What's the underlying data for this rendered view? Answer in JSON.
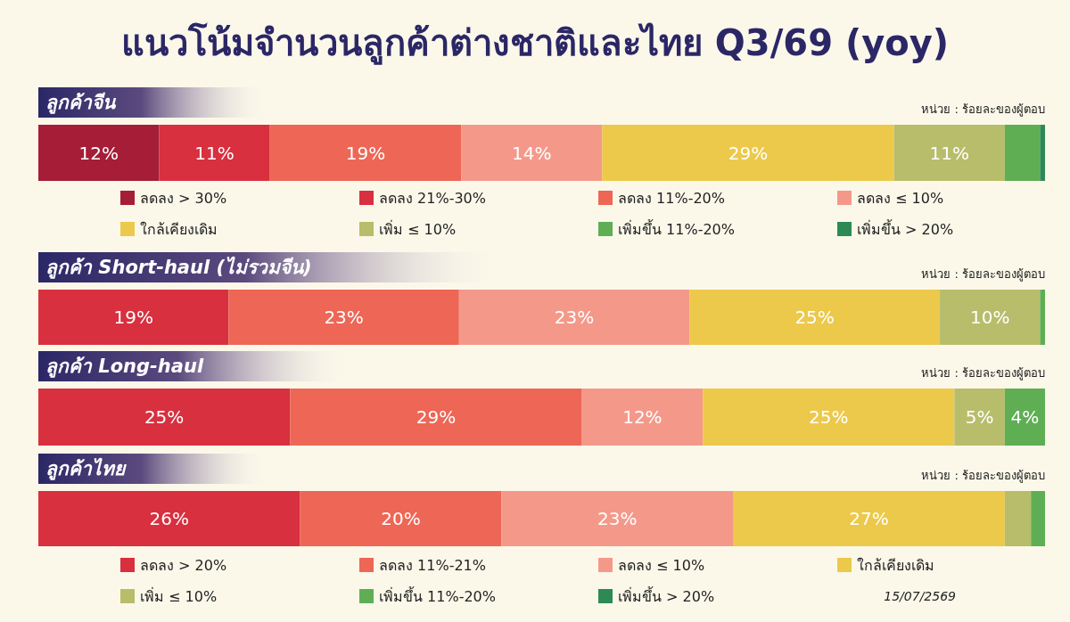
{
  "chart_data": [
    {
      "type": "bar",
      "orientation": "horizontal",
      "stacked": true,
      "title": "แนวโน้มจำนวนลูกค้าต่างชาติและไทย Q3/69 (yoy)",
      "subtitle": "ลูกค้าจีน",
      "annotations": [
        "หน่วย : ร้อยละของผู้ตอบ"
      ],
      "categories": [
        null
      ],
      "xlim": [
        0,
        100
      ],
      "tick_labels": false,
      "legend": "bottom",
      "series": [
        {
          "name": "ลดลง > 30%",
          "color": "#a51d36",
          "values": [
            12
          ],
          "value_labels": [
            "12%"
          ]
        },
        {
          "name": "ลดลง 21%-30%",
          "color": "#d8303f",
          "values": [
            11
          ],
          "value_labels": [
            "11%"
          ]
        },
        {
          "name": "ลดลง 11%-20%",
          "color": "#ee6655",
          "values": [
            19
          ],
          "value_labels": [
            "19%"
          ]
        },
        {
          "name": "ลดลง ≤ 10%",
          "color": "#f4998a",
          "values": [
            14
          ],
          "value_labels": [
            "14%"
          ]
        },
        {
          "name": "ใกล้เคียงเดิม",
          "color": "#ecc94a",
          "values": [
            29
          ],
          "value_labels": [
            "29%"
          ]
        },
        {
          "name": "เพิ่ม ≤ 10%",
          "color": "#b7bd6a",
          "values": [
            11
          ],
          "value_labels": [
            "11%"
          ]
        },
        {
          "name": "เพิ่มขึ้น 11%-20%",
          "color": "#5fae54",
          "values": [
            3.5
          ],
          "value_labels": [
            null
          ]
        },
        {
          "name": "เพิ่มขึ้น > 20%",
          "color": "#2e8a55",
          "values": [
            0.5
          ],
          "value_labels": [
            null
          ]
        }
      ]
    },
    {
      "type": "bar",
      "orientation": "horizontal",
      "stacked": true,
      "subtitle": "ลูกค้า Short-haul (ไม่รวมจีน)",
      "annotations": [
        "หน่วย : ร้อยละของผู้ตอบ"
      ],
      "categories": [
        null
      ],
      "xlim": [
        0,
        100.5
      ],
      "tick_labels": false,
      "legend": false,
      "series": [
        {
          "color": "#d8303f",
          "values": [
            19
          ],
          "value_labels": [
            "19%"
          ]
        },
        {
          "color": "#ee6655",
          "values": [
            23
          ],
          "value_labels": [
            "23%"
          ]
        },
        {
          "color": "#f4998a",
          "values": [
            23
          ],
          "value_labels": [
            "23%"
          ]
        },
        {
          "color": "#ecc94a",
          "values": [
            25
          ],
          "value_labels": [
            "25%"
          ]
        },
        {
          "color": "#b7bd6a",
          "values": [
            10
          ],
          "value_labels": [
            "10%"
          ]
        },
        {
          "color": "#5fae54",
          "values": [
            0.5
          ],
          "value_labels": [
            null
          ]
        }
      ]
    },
    {
      "type": "bar",
      "orientation": "horizontal",
      "stacked": true,
      "subtitle": "ลูกค้า Long-haul",
      "annotations": [
        "หน่วย : ร้อยละของผู้ตอบ"
      ],
      "categories": [
        null
      ],
      "xlim": [
        0,
        100
      ],
      "tick_labels": false,
      "legend": false,
      "series": [
        {
          "color": "#d8303f",
          "values": [
            25
          ],
          "value_labels": [
            "25%"
          ]
        },
        {
          "color": "#ee6655",
          "values": [
            29
          ],
          "value_labels": [
            "29%"
          ]
        },
        {
          "color": "#f4998a",
          "values": [
            12
          ],
          "value_labels": [
            "12%"
          ]
        },
        {
          "color": "#ecc94a",
          "values": [
            25
          ],
          "value_labels": [
            "25%"
          ]
        },
        {
          "color": "#b7bd6a",
          "values": [
            5
          ],
          "value_labels": [
            "5%"
          ]
        },
        {
          "color": "#5fae54",
          "values": [
            4
          ],
          "value_labels": [
            "4%"
          ]
        }
      ]
    },
    {
      "type": "bar",
      "orientation": "horizontal",
      "stacked": true,
      "subtitle": "ลูกค้าไทย",
      "annotations": [
        "หน่วย : ร้อยละของผู้ตอบ",
        "15/07/2569"
      ],
      "categories": [
        null
      ],
      "xlim": [
        0,
        100
      ],
      "tick_labels": false,
      "legend": "bottom",
      "series": [
        {
          "name": "ลดลง > 20%",
          "color": "#d8303f",
          "values": [
            26
          ],
          "value_labels": [
            "26%"
          ]
        },
        {
          "name": "ลดลง 11%-21%",
          "color": "#ee6655",
          "values": [
            20
          ],
          "value_labels": [
            "20%"
          ]
        },
        {
          "name": "ลดลง ≤ 10%",
          "color": "#f4998a",
          "values": [
            23
          ],
          "value_labels": [
            "23%"
          ]
        },
        {
          "name": "ใกล้เคียงเดิม",
          "color": "#ecc94a",
          "values": [
            27
          ],
          "value_labels": [
            "27%"
          ]
        },
        {
          "name": "เพิ่ม ≤ 10%",
          "color": "#b7bd6a",
          "values": [
            2.6
          ],
          "value_labels": [
            null
          ]
        },
        {
          "name": "เพิ่มขึ้น 11%-20%",
          "color": "#5fae54",
          "values": [
            1.4
          ],
          "value_labels": [
            null
          ]
        },
        {
          "name": "เพิ่มขึ้น > 20%",
          "color": "#2e8a55",
          "values": [
            0
          ],
          "value_labels": [
            null
          ]
        }
      ]
    }
  ]
}
